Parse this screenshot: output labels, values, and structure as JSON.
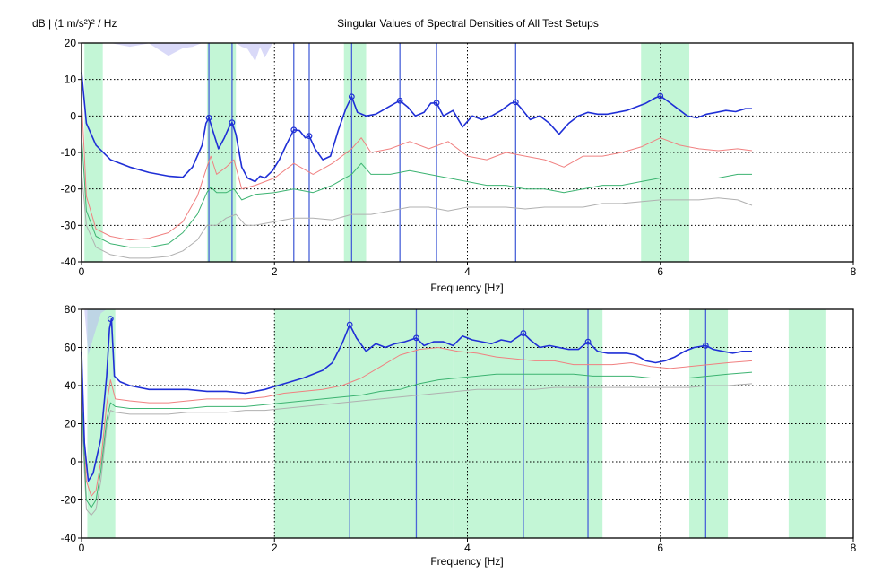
{
  "unit_label": "dB | (1 m/s²)² / Hz",
  "chart_data": [
    {
      "type": "line",
      "title": "Singular Values of Spectral Densities of All Test Setups",
      "xlabel": "Frequency [Hz]",
      "ylabel": "",
      "xlim": [
        0,
        8
      ],
      "ylim": [
        -40,
        20
      ],
      "x_ticks": [
        "0",
        "2",
        "4",
        "6",
        "8"
      ],
      "y_ticks": [
        "-40",
        "-30",
        "-20",
        "-10",
        "0",
        "10",
        "20"
      ],
      "grid": true,
      "colors": {
        "sv1": "#1f2fd6",
        "sv2": "#f08080",
        "sv3": "#3cb371",
        "sv4": "#b0b0b0",
        "band": "#b8f5cf",
        "peak_line": "#4a63d8",
        "shade": "#b9b9f3"
      },
      "bands": [
        [
          0.03,
          0.22
        ],
        [
          1.3,
          1.6
        ],
        [
          2.72,
          2.95
        ],
        [
          5.8,
          6.3
        ]
      ],
      "selected_peaks": [
        1.32,
        1.56,
        2.2,
        2.36,
        2.8,
        3.3,
        3.68,
        4.5
      ],
      "peak_markers": [
        [
          1.32,
          -0.5
        ],
        [
          1.56,
          -1.8
        ],
        [
          2.2,
          -3.8
        ],
        [
          2.36,
          -5.5
        ],
        [
          2.8,
          5.3
        ],
        [
          3.3,
          4.2
        ],
        [
          3.68,
          3.6
        ],
        [
          4.5,
          3.8
        ],
        [
          6.0,
          5.5
        ]
      ],
      "series": [
        {
          "x": [
            0,
            0.05,
            0.15,
            0.3,
            0.5,
            0.7,
            0.9,
            1.05,
            1.15,
            1.25,
            1.29,
            1.32,
            1.36,
            1.42,
            1.48,
            1.53,
            1.56,
            1.6,
            1.66,
            1.72,
            1.8,
            1.85,
            1.9,
            1.98,
            2.05,
            2.12,
            2.2,
            2.26,
            2.32,
            2.36,
            2.42,
            2.5,
            2.58,
            2.66,
            2.74,
            2.8,
            2.86,
            2.95,
            3.05,
            3.15,
            3.25,
            3.3,
            3.38,
            3.46,
            3.55,
            3.62,
            3.68,
            3.75,
            3.85,
            3.95,
            4.05,
            4.15,
            4.25,
            4.35,
            4.45,
            4.5,
            4.56,
            4.65,
            4.75,
            4.85,
            4.95,
            5.05,
            5.15,
            5.25,
            5.35,
            5.45,
            5.55,
            5.65,
            5.75,
            5.85,
            5.95,
            6.0,
            6.08,
            6.18,
            6.28,
            6.38,
            6.48,
            6.58,
            6.68,
            6.78,
            6.88,
            6.95
          ],
          "y": [
            12,
            -2,
            -8,
            -12,
            -14,
            -15.5,
            -16.5,
            -16.8,
            -14,
            -8,
            -2,
            -0.5,
            -4,
            -9,
            -6,
            -3,
            -1.8,
            -5,
            -14,
            -17,
            -18,
            -16.5,
            -17,
            -15,
            -12,
            -8,
            -3.8,
            -4,
            -6,
            -5.5,
            -9,
            -12,
            -11,
            -4,
            2,
            5.3,
            1,
            0,
            0.5,
            2,
            3.5,
            4.2,
            2.5,
            0,
            1,
            3.5,
            3.6,
            0,
            1.5,
            -3,
            0,
            -1,
            0,
            1.5,
            3.5,
            3.8,
            2,
            -1,
            0,
            -2,
            -5,
            -2,
            0,
            1,
            0.5,
            0.5,
            1,
            1.5,
            2.5,
            3.5,
            5,
            5.5,
            4,
            2,
            0,
            -0.5,
            0.5,
            1,
            1.5,
            1.2,
            2,
            2
          ]
        },
        {
          "x": [
            0,
            0.05,
            0.15,
            0.3,
            0.5,
            0.7,
            0.9,
            1.05,
            1.2,
            1.3,
            1.34,
            1.4,
            1.5,
            1.58,
            1.66,
            1.8,
            2.0,
            2.2,
            2.4,
            2.6,
            2.8,
            2.9,
            3.0,
            3.2,
            3.4,
            3.6,
            3.8,
            4.0,
            4.2,
            4.4,
            4.6,
            4.8,
            5.0,
            5.2,
            5.4,
            5.6,
            5.8,
            6.0,
            6.2,
            6.4,
            6.6,
            6.8,
            6.95
          ],
          "y": [
            5,
            -22,
            -31,
            -33,
            -34,
            -33.5,
            -32,
            -29,
            -22,
            -14,
            -11,
            -16,
            -14,
            -12,
            -20,
            -19,
            -17,
            -13,
            -16,
            -13,
            -9,
            -6,
            -10,
            -9,
            -7,
            -9,
            -7,
            -11,
            -12,
            -10,
            -11,
            -12,
            -14,
            -11,
            -11,
            -10,
            -8.5,
            -6,
            -8,
            -9,
            -9.5,
            -9,
            -9.5
          ]
        },
        {
          "x": [
            0,
            0.05,
            0.15,
            0.3,
            0.5,
            0.7,
            0.9,
            1.05,
            1.2,
            1.3,
            1.34,
            1.4,
            1.5,
            1.58,
            1.66,
            1.8,
            2.0,
            2.2,
            2.4,
            2.6,
            2.8,
            2.9,
            3.0,
            3.2,
            3.4,
            3.6,
            3.8,
            4.0,
            4.2,
            4.4,
            4.6,
            4.8,
            5.0,
            5.2,
            5.4,
            5.6,
            5.8,
            6.0,
            6.2,
            6.4,
            6.6,
            6.8,
            6.95
          ],
          "y": [
            -5,
            -26,
            -33,
            -35,
            -36,
            -36,
            -35,
            -32,
            -27,
            -21,
            -19.5,
            -21,
            -21,
            -20,
            -23,
            -21.5,
            -21,
            -20,
            -21,
            -19,
            -16,
            -13,
            -16,
            -16,
            -15,
            -16,
            -17,
            -18,
            -19,
            -19,
            -20,
            -20,
            -21,
            -20,
            -19,
            -19,
            -18,
            -17,
            -17,
            -17,
            -17,
            -16,
            -16
          ]
        },
        {
          "x": [
            0,
            0.05,
            0.15,
            0.3,
            0.5,
            0.7,
            0.9,
            1.05,
            1.2,
            1.3,
            1.4,
            1.5,
            1.6,
            1.7,
            1.8,
            2.0,
            2.2,
            2.4,
            2.6,
            2.8,
            3.0,
            3.2,
            3.4,
            3.6,
            3.8,
            4.0,
            4.2,
            4.4,
            4.6,
            4.8,
            5.0,
            5.2,
            5.4,
            5.6,
            5.8,
            6.0,
            6.2,
            6.4,
            6.6,
            6.8,
            6.95
          ],
          "y": [
            -15,
            -30,
            -36,
            -38,
            -39,
            -39,
            -38.5,
            -37,
            -34,
            -30,
            -30,
            -28,
            -27,
            -30,
            -30,
            -29,
            -28,
            -28,
            -28.5,
            -27,
            -27,
            -26,
            -25,
            -25,
            -26,
            -25,
            -25,
            -25,
            -25.5,
            -25,
            -25,
            -25,
            -24,
            -24,
            -23.5,
            -23,
            -23,
            -23,
            -22.5,
            -23,
            -24.5
          ]
        }
      ]
    },
    {
      "type": "line",
      "title": "",
      "xlabel": "Frequency [Hz]",
      "ylabel": "",
      "xlim": [
        0,
        8
      ],
      "ylim": [
        -40,
        80
      ],
      "x_ticks": [
        "0",
        "2",
        "4",
        "6",
        "8"
      ],
      "y_ticks": [
        "-40",
        "-20",
        "0",
        "20",
        "40",
        "60",
        "80"
      ],
      "grid": true,
      "colors": {
        "sv1": "#1f2fd6",
        "sv2": "#f08080",
        "sv3": "#3cb371",
        "sv4": "#b0b0b0",
        "band": "#b8f5cf",
        "peak_line": "#4a63d8",
        "shade": "#b9b9f3"
      },
      "bands": [
        [
          0.06,
          0.35
        ],
        [
          2.0,
          3.85
        ],
        [
          3.85,
          5.05
        ],
        [
          5.05,
          5.4
        ],
        [
          6.3,
          6.7
        ],
        [
          7.33,
          7.72
        ]
      ],
      "selected_peaks": [
        2.78,
        3.47,
        4.58,
        5.25,
        6.47
      ],
      "peak_markers": [
        [
          0.3,
          75
        ],
        [
          2.78,
          72
        ],
        [
          3.47,
          65
        ],
        [
          4.58,
          67.5
        ],
        [
          5.25,
          63
        ],
        [
          6.47,
          61
        ]
      ],
      "series": [
        {
          "x": [
            0,
            0.03,
            0.07,
            0.12,
            0.2,
            0.26,
            0.29,
            0.31,
            0.34,
            0.4,
            0.5,
            0.7,
            0.9,
            1.1,
            1.3,
            1.5,
            1.7,
            1.9,
            2.1,
            2.3,
            2.5,
            2.6,
            2.7,
            2.78,
            2.85,
            2.95,
            3.05,
            3.15,
            3.25,
            3.35,
            3.47,
            3.55,
            3.65,
            3.75,
            3.85,
            3.95,
            4.05,
            4.15,
            4.25,
            4.35,
            4.45,
            4.58,
            4.65,
            4.75,
            4.85,
            4.95,
            5.05,
            5.15,
            5.25,
            5.35,
            5.45,
            5.55,
            5.65,
            5.75,
            5.85,
            5.95,
            6.05,
            6.15,
            6.25,
            6.35,
            6.47,
            6.55,
            6.65,
            6.75,
            6.85,
            6.95
          ],
          "y": [
            58,
            10,
            -10,
            -6,
            12,
            45,
            70,
            75,
            45,
            42,
            40,
            38,
            38,
            38,
            37,
            37,
            36,
            38,
            41,
            44,
            48,
            52,
            62,
            72,
            65,
            58,
            62,
            60,
            62,
            63,
            65,
            61,
            63,
            63,
            61,
            66,
            64,
            63,
            62,
            64,
            63,
            67.5,
            64,
            60,
            61,
            60,
            59,
            59,
            63,
            58,
            57,
            57,
            57,
            56,
            53,
            52,
            53,
            55,
            58,
            60,
            61,
            59,
            58,
            57,
            58,
            58
          ]
        },
        {
          "x": [
            0,
            0.05,
            0.1,
            0.15,
            0.2,
            0.26,
            0.3,
            0.35,
            0.5,
            0.7,
            0.9,
            1.1,
            1.3,
            1.5,
            1.7,
            1.9,
            2.1,
            2.3,
            2.5,
            2.7,
            2.9,
            3.1,
            3.3,
            3.5,
            3.7,
            3.9,
            4.1,
            4.3,
            4.5,
            4.7,
            4.9,
            5.1,
            5.3,
            5.5,
            5.7,
            5.9,
            6.1,
            6.3,
            6.5,
            6.7,
            6.95
          ],
          "y": [
            45,
            -10,
            -18,
            -15,
            0,
            30,
            43,
            33,
            32,
            31,
            31,
            32,
            33,
            33,
            33,
            34,
            36,
            37,
            38,
            40,
            44,
            50,
            56,
            59,
            60,
            58,
            57,
            55,
            54,
            53,
            53,
            51,
            51,
            51,
            52,
            50,
            49,
            50,
            51,
            52,
            53
          ]
        },
        {
          "x": [
            0,
            0.05,
            0.1,
            0.15,
            0.2,
            0.26,
            0.3,
            0.35,
            0.5,
            0.7,
            0.9,
            1.1,
            1.3,
            1.5,
            1.7,
            1.9,
            2.1,
            2.3,
            2.5,
            2.7,
            2.9,
            3.1,
            3.3,
            3.5,
            3.7,
            3.9,
            4.1,
            4.3,
            4.5,
            4.7,
            4.9,
            5.1,
            5.3,
            5.5,
            5.7,
            5.9,
            6.1,
            6.3,
            6.5,
            6.7,
            6.95
          ],
          "y": [
            35,
            -20,
            -24,
            -20,
            -5,
            22,
            31,
            29,
            28,
            28,
            28,
            28,
            29,
            29,
            29,
            30,
            31,
            32,
            33,
            34,
            35,
            37,
            38,
            41,
            43,
            44,
            45,
            46,
            46,
            46,
            46,
            46,
            45,
            45,
            45,
            44,
            44,
            44,
            45,
            46,
            47
          ]
        },
        {
          "x": [
            0,
            0.05,
            0.1,
            0.15,
            0.2,
            0.26,
            0.3,
            0.35,
            0.5,
            0.7,
            0.9,
            1.1,
            1.3,
            1.5,
            1.7,
            1.9,
            2.1,
            2.3,
            2.5,
            2.7,
            2.9,
            3.1,
            3.3,
            3.5,
            3.7,
            3.9,
            4.1,
            4.3,
            4.5,
            4.7,
            4.9,
            5.1,
            5.3,
            5.5,
            5.7,
            5.9,
            6.1,
            6.3,
            6.5,
            6.7,
            6.95
          ],
          "y": [
            25,
            -25,
            -28,
            -25,
            -10,
            18,
            27,
            26,
            25,
            25,
            25,
            26,
            26,
            26,
            27,
            27,
            28,
            29,
            30,
            31,
            32,
            33,
            34,
            35,
            36,
            37,
            38,
            38,
            38,
            38,
            39,
            39,
            39,
            39,
            39,
            39,
            39,
            39,
            40,
            40,
            41
          ]
        }
      ]
    }
  ]
}
